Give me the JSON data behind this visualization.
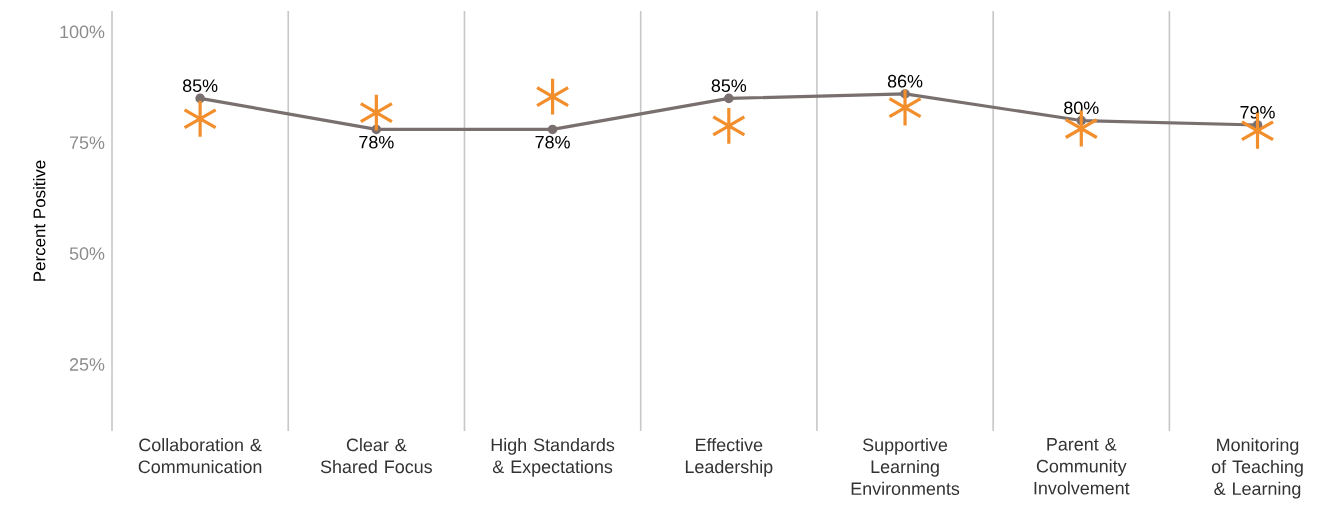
{
  "chart_data": {
    "type": "line",
    "ylabel": "Percent Positive",
    "categories": [
      "Collaboration & Communication",
      "Clear & Shared Focus",
      "High Standards & Expectations",
      "Effective Leadership",
      "Supportive Learning Environments",
      "Parent & Community Involvement",
      "Monitoring of Teaching & Learning"
    ],
    "series": [
      {
        "color": "#796f6f",
        "marker": "circle",
        "values": [
          85,
          78,
          78,
          85,
          86,
          80,
          79
        ],
        "value_labels": [
          "85%",
          "78%",
          "78%",
          "85%",
          "86%",
          "80%",
          "79%"
        ]
      },
      {
        "type": "scatter",
        "color": "#f28e2b",
        "marker": "cross",
        "values": [
          80.4,
          81.8,
          85.4,
          78.8,
          82.9,
          78.2,
          77.7
        ]
      }
    ],
    "ylim": [
      10,
      104.7
    ],
    "yticks": [
      {
        "value": 25,
        "label": "25%"
      },
      {
        "value": 50,
        "label": "50%"
      },
      {
        "value": 75,
        "label": "75%"
      },
      {
        "value": 100,
        "label": "100%"
      }
    ],
    "grid": "x"
  }
}
